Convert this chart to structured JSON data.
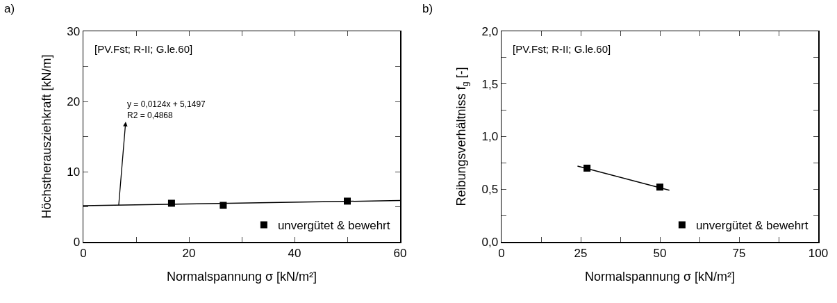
{
  "chart_data": [
    {
      "type": "scatter",
      "title": "a)",
      "xlabel": "Normalspannung σ [kN/m²]",
      "ylabel": "Höchstherausziehkraft [kN/m]",
      "xlim": [
        0,
        60
      ],
      "xticks": [
        0,
        {
          "value": 10,
          "label": null
        },
        20,
        {
          "value": 30,
          "label": null
        },
        40,
        {
          "value": 50,
          "label": null
        },
        60
      ],
      "ylim": [
        0,
        30
      ],
      "yticks": [
        0,
        {
          "value": 5,
          "label": null
        },
        10,
        {
          "value": 15,
          "label": null
        },
        20,
        {
          "value": 25,
          "label": null
        },
        30
      ],
      "grid": false,
      "legend": "bottom right",
      "marker": "square",
      "series": [
        {
          "name": "unvergütet & bewehrt",
          "color": "#000000",
          "x": [
            16.7,
            26.5,
            50
          ],
          "values": [
            5.5,
            5.2,
            5.8
          ]
        },
        {
          "type": "line",
          "color": "#000000",
          "marker": "none",
          "line_style": "solid",
          "x": [
            0,
            60
          ],
          "values": [
            5.15,
            5.89
          ]
        }
      ],
      "annotations": [
        "[PV.Fst; R-II; G.le.60]",
        {
          "text": "y = 0,0124x + 5,1497\nR2 = 0,4868",
          "x": 6.7,
          "y": 5.23
        }
      ]
    },
    {
      "type": "scatter",
      "title": "b)",
      "xlabel": "Normalspannung σ [kN/m²]",
      "ylabel": "Reibungsverhältniss f$_{g}$ [-]",
      "xlim": [
        0,
        100
      ],
      "xticks": [
        0,
        {
          "value": 12.5,
          "label": null
        },
        25,
        {
          "value": 37.5,
          "label": null
        },
        50,
        {
          "value": 62.5,
          "label": null
        },
        75,
        {
          "value": 87.5,
          "label": null
        },
        100
      ],
      "ylim": [
        0,
        2
      ],
      "yticks": [
        {
          "value": 0,
          "label": "0,0"
        },
        {
          "value": 0.25,
          "label": null
        },
        {
          "value": 0.5,
          "label": "0,5"
        },
        {
          "value": 0.75,
          "label": null
        },
        {
          "value": 1,
          "label": "1,0"
        },
        {
          "value": 1.25,
          "label": null
        },
        {
          "value": 1.5,
          "label": "1,5"
        },
        {
          "value": 1.75,
          "label": null
        },
        {
          "value": 2,
          "label": "2,0"
        }
      ],
      "grid": false,
      "legend": "bottom right",
      "marker": "square",
      "series": [
        {
          "name": "unvergütet & bewehrt",
          "color": "#000000",
          "x": [
            27,
            50
          ],
          "values": [
            0.7,
            0.52
          ]
        },
        {
          "type": "line",
          "color": "#000000",
          "marker": "none",
          "line_style": "solid",
          "x": [
            24,
            53
          ],
          "values": [
            0.72,
            0.49
          ]
        }
      ],
      "annotations": [
        "[PV.Fst; R-II; G.le.60]"
      ]
    }
  ]
}
